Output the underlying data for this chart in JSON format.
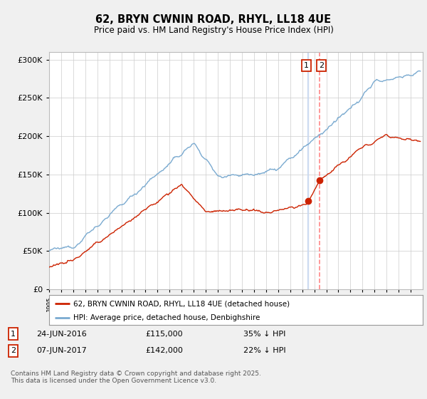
{
  "title": "62, BRYN CWNIN ROAD, RHYL, LL18 4UE",
  "subtitle": "Price paid vs. HM Land Registry's House Price Index (HPI)",
  "legend_line1": "62, BRYN CWNIN ROAD, RHYL, LL18 4UE (detached house)",
  "legend_line2": "HPI: Average price, detached house, Denbighshire",
  "transaction1_date": "24-JUN-2016",
  "transaction1_price": "£115,000",
  "transaction1_hpi": "35% ↓ HPI",
  "transaction2_date": "07-JUN-2017",
  "transaction2_price": "£142,000",
  "transaction2_hpi": "22% ↓ HPI",
  "footnote": "Contains HM Land Registry data © Crown copyright and database right 2025.\nThis data is licensed under the Open Government Licence v3.0.",
  "hpi_color": "#7aaad0",
  "price_color": "#cc2200",
  "vline1_color": "#c8d8f0",
  "vline2_color": "#ff8888",
  "background_color": "#f0f0f0",
  "plot_bg_color": "#ffffff",
  "ylim_min": 0,
  "ylim_max": 310000,
  "year_start": 1995,
  "year_end": 2026,
  "t1_year": 2016.48,
  "t2_year": 2017.43,
  "t1_price": 115000,
  "t2_price": 142000
}
